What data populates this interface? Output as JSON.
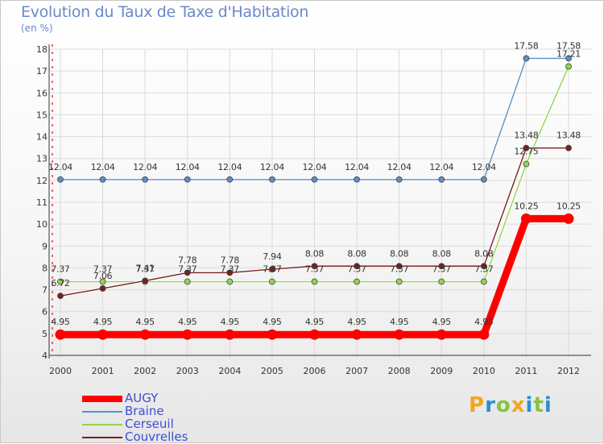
{
  "title": "Evolution du Taux de Taxe d'Habitation",
  "subtitle": "(en %)",
  "logo": {
    "text": "Proxiti",
    "colors": [
      "#f2a81d",
      "#2b8fd6",
      "#86c442",
      "#f2a81d",
      "#2b8fd6",
      "#86c442",
      "#2b8fd6"
    ]
  },
  "chart_data": {
    "type": "line",
    "title": "Evolution du Taux de Taxe d'Habitation",
    "ylabel": "(en %)",
    "xlabel": "",
    "x": [
      "2000",
      "2001",
      "2002",
      "2003",
      "2004",
      "2005",
      "2006",
      "2007",
      "2008",
      "2009",
      "2010",
      "2011",
      "2012"
    ],
    "ylim": [
      4,
      18
    ],
    "yticks": [
      4,
      5,
      6,
      7,
      8,
      9,
      10,
      11,
      12,
      13,
      14,
      15,
      16,
      17,
      18
    ],
    "grid": true,
    "legend": "bottom-left",
    "series": [
      {
        "name": "AUGY",
        "color": "#ff0000",
        "emphasis": true,
        "values": [
          4.95,
          4.95,
          4.95,
          4.95,
          4.95,
          4.95,
          4.95,
          4.95,
          4.95,
          4.95,
          4.95,
          10.25,
          10.25
        ],
        "labels": [
          "4.95",
          "4.95",
          "4.95",
          "4.95",
          "4.95",
          "4.95",
          "4.95",
          "4.95",
          "4.95",
          "4.95",
          "4.95",
          "10.25",
          "10.25"
        ]
      },
      {
        "name": "Braine",
        "color": "#5b8fc7",
        "values": [
          12.04,
          12.04,
          12.04,
          12.04,
          12.04,
          12.04,
          12.04,
          12.04,
          12.04,
          12.04,
          12.04,
          17.58,
          17.58
        ],
        "labels": [
          "12.04",
          "12.04",
          "12.04",
          "12.04",
          "12.04",
          "12.04",
          "12.04",
          "12.04",
          "12.04",
          "12.04",
          "12.04",
          "17.58",
          "17.58"
        ]
      },
      {
        "name": "Cerseuil",
        "color": "#8fd64b",
        "values": [
          7.37,
          7.37,
          7.37,
          7.37,
          7.37,
          7.37,
          7.37,
          7.37,
          7.37,
          7.37,
          7.37,
          12.75,
          17.21
        ],
        "labels": [
          "7.37",
          "7.37",
          "7.37",
          "7.37",
          "7.37",
          "7.37",
          "7.37",
          "7.37",
          "7.37",
          "7.37",
          "7.37",
          "12.75",
          "17.21"
        ]
      },
      {
        "name": "Couvrelles",
        "color": "#7a1f1f",
        "values": [
          6.72,
          7.06,
          7.41,
          7.78,
          7.78,
          7.94,
          8.08,
          8.08,
          8.08,
          8.08,
          8.08,
          13.48,
          13.48
        ],
        "labels": [
          "6.72",
          "7.06",
          "7.41",
          "7.78",
          "7.78",
          "7.94",
          "8.08",
          "8.08",
          "8.08",
          "8.08",
          "8.08",
          "13.48",
          "13.48"
        ]
      }
    ]
  }
}
